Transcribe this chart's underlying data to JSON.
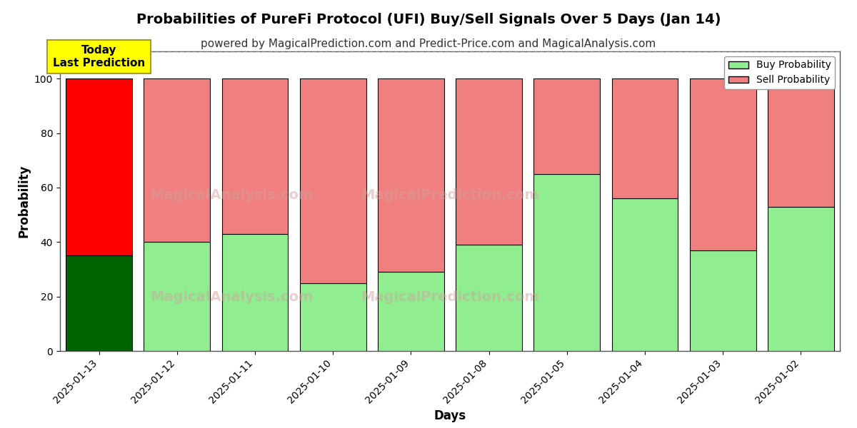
{
  "title": "Probabilities of PureFi Protocol (UFI) Buy/Sell Signals Over 5 Days (Jan 14)",
  "subtitle": "powered by MagicalPrediction.com and Predict-Price.com and MagicalAnalysis.com",
  "xlabel": "Days",
  "ylabel": "Probability",
  "dates": [
    "2025-01-13",
    "2025-01-12",
    "2025-01-11",
    "2025-01-10",
    "2025-01-09",
    "2025-01-08",
    "2025-01-05",
    "2025-01-04",
    "2025-01-03",
    "2025-01-02"
  ],
  "buy_values": [
    35,
    40,
    43,
    25,
    29,
    39,
    65,
    56,
    37,
    53
  ],
  "sell_values": [
    65,
    60,
    57,
    75,
    71,
    61,
    35,
    44,
    63,
    47
  ],
  "today_bar_buy_color": "#006400",
  "today_bar_sell_color": "#ff0000",
  "normal_bar_buy_color": "#90ee90",
  "normal_bar_sell_color": "#f08080",
  "bar_edgecolor": "#000000",
  "today_annotation_text": "Today\nLast Prediction",
  "today_annotation_bg": "#ffff00",
  "legend_buy_label": "Buy Probability",
  "legend_sell_label": "Sell Probability",
  "ylim": [
    0,
    110
  ],
  "dashed_line_y": 110,
  "grid_color": "#ffffff",
  "plot_bg_color": "#ffffff",
  "fig_bg_color": "#ffffff",
  "title_fontsize": 14,
  "subtitle_fontsize": 11,
  "axis_label_fontsize": 12,
  "tick_fontsize": 10
}
